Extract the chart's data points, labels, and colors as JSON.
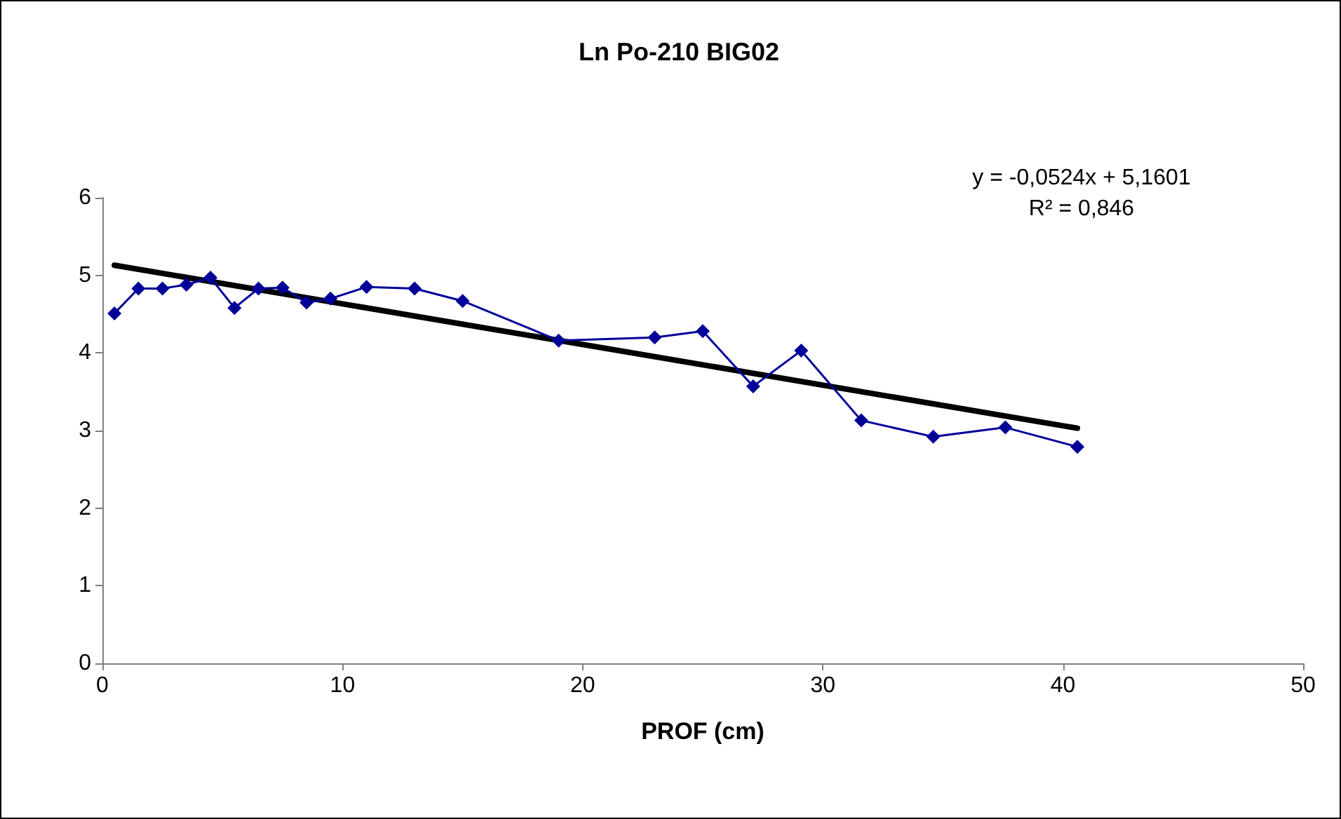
{
  "chart_data": {
    "type": "line",
    "title": "Ln Po-210 BIG02",
    "xlabel": "PROF (cm)",
    "annotations": [
      "y = -0,0524x + 5,1601",
      "R² = 0,846"
    ],
    "xlim": [
      0,
      50
    ],
    "xticks": [
      0,
      10,
      20,
      30,
      40,
      50
    ],
    "ylim": [
      0,
      6
    ],
    "yticks": [
      0,
      1,
      2,
      3,
      4,
      5,
      6
    ],
    "grid": false,
    "marker": "diamond",
    "line_style": "solid",
    "series": [
      {
        "color": "#000099",
        "x": [
          0.5,
          1.5,
          2.5,
          3.5,
          4.5,
          5.5,
          6.5,
          7.5,
          8.5,
          9.5,
          11,
          13,
          15,
          19,
          23,
          25,
          27.1,
          29.1,
          31.6,
          34.6,
          37.6,
          40.6
        ],
        "values": [
          4.51,
          4.83,
          4.83,
          4.88,
          4.97,
          4.58,
          4.83,
          4.84,
          4.65,
          4.7,
          4.85,
          4.83,
          4.67,
          4.16,
          4.2,
          4.28,
          3.57,
          4.03,
          3.13,
          2.92,
          3.04,
          2.79
        ]
      },
      {
        "type": "line",
        "color": "#000000",
        "marker": "none",
        "x": [
          0.5,
          40.6
        ],
        "values": [
          5.13,
          3.03
        ]
      }
    ]
  }
}
